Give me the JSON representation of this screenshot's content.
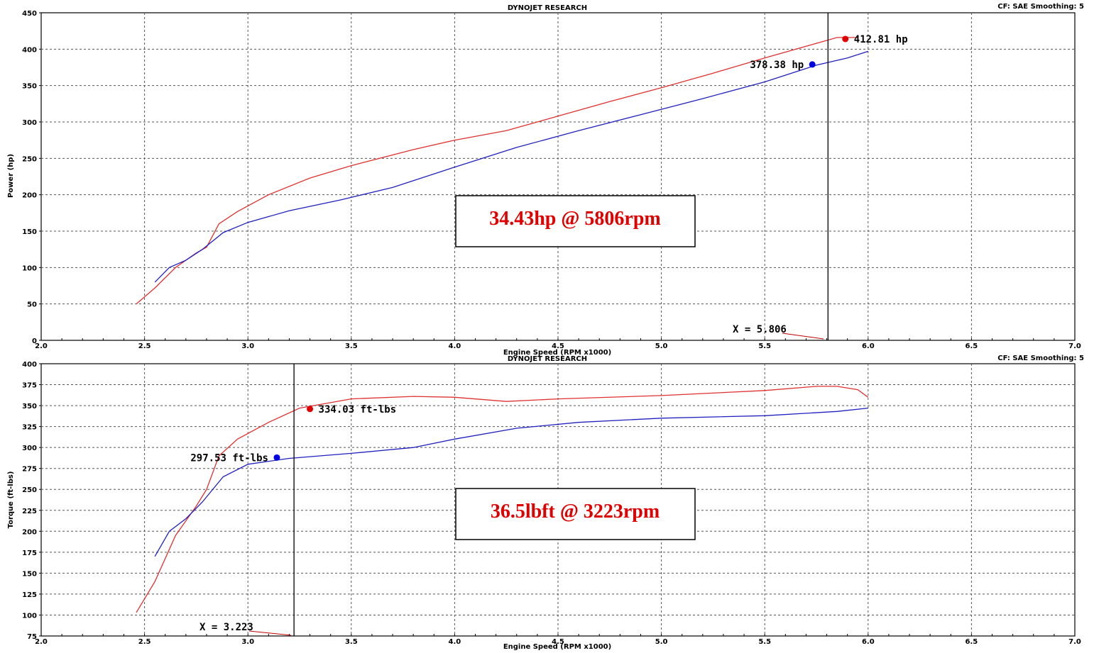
{
  "chart_data": [
    {
      "type": "line",
      "header": "DYNOJET RESEARCH",
      "settings": "CF: SAE  Smoothing: 5",
      "xlabel": "Engine Speed (RPM x1000)",
      "ylabel": "Power (hp)",
      "xlim": [
        2.0,
        7.0
      ],
      "ylim": [
        0,
        450
      ],
      "xticks": [
        "2.0",
        "2.5",
        "3.0",
        "3.5",
        "4.0",
        "4.5",
        "5.0",
        "5.5",
        "6.0",
        "6.5",
        "7.0"
      ],
      "yticks": [
        "0",
        "50",
        "100",
        "150",
        "200",
        "250",
        "300",
        "350",
        "400",
        "450"
      ],
      "grid": true,
      "colors": {
        "series_red": "#e03030",
        "series_blue": "#2020c0",
        "cursor": "#000000"
      },
      "series": [
        {
          "color": "#e03030",
          "x": [
            2.46,
            2.55,
            2.65,
            2.75,
            2.8,
            2.86,
            2.95,
            3.1,
            3.3,
            3.5,
            3.8,
            4.0,
            4.25,
            4.5,
            4.75,
            5.0,
            5.25,
            5.5,
            5.75,
            5.85,
            5.95
          ],
          "y": [
            50,
            72,
            100,
            120,
            128,
            160,
            177,
            200,
            223,
            240,
            262,
            275,
            288,
            308,
            328,
            347,
            367,
            388,
            408,
            416,
            416
          ]
        },
        {
          "color": "#2020c0",
          "x": [
            2.55,
            2.62,
            2.7,
            2.78,
            2.88,
            3.0,
            3.2,
            3.45,
            3.7,
            4.0,
            4.3,
            4.6,
            4.9,
            5.2,
            5.5,
            5.75,
            5.9,
            6.0
          ],
          "y": [
            80,
            100,
            110,
            125,
            148,
            162,
            178,
            193,
            210,
            238,
            265,
            288,
            310,
            332,
            355,
            378,
            388,
            397
          ]
        }
      ],
      "cursor_x": 5.806,
      "cursor_label": "X = 5.806",
      "markers": [
        {
          "label": "412.81 hp",
          "x": 5.89,
          "y": 414,
          "color": "#e00000"
        },
        {
          "label": "378.38 hp",
          "x": 5.73,
          "y": 379,
          "color": "#0000e0"
        }
      ],
      "annotation": "34.43hp @ 5806rpm"
    },
    {
      "type": "line",
      "header": "DYNOJET RESEARCH",
      "settings": "CF: SAE  Smoothing: 5",
      "xlabel": "Engine Speed (RPM x1000)",
      "ylabel": "Torque (ft-lbs)",
      "xlim": [
        2.0,
        7.0
      ],
      "ylim": [
        75,
        400
      ],
      "xticks": [
        "2.0",
        "2.5",
        "3.0",
        "3.5",
        "4.0",
        "4.5",
        "5.0",
        "5.5",
        "6.0",
        "6.5",
        "7.0"
      ],
      "yticks": [
        "75",
        "100",
        "125",
        "150",
        "175",
        "200",
        "225",
        "250",
        "275",
        "300",
        "325",
        "350",
        "375",
        "400"
      ],
      "grid": true,
      "colors": {
        "series_red": "#e03030",
        "series_blue": "#2020c0",
        "cursor": "#000000"
      },
      "series": [
        {
          "color": "#e03030",
          "x": [
            2.46,
            2.55,
            2.65,
            2.75,
            2.8,
            2.86,
            2.95,
            3.1,
            3.25,
            3.5,
            3.8,
            4.0,
            4.25,
            4.5,
            5.0,
            5.5,
            5.75,
            5.85,
            5.95,
            6.0
          ],
          "y": [
            103,
            140,
            195,
            230,
            250,
            290,
            310,
            330,
            347,
            358,
            361,
            360,
            355,
            358,
            362,
            368,
            373,
            373,
            369,
            360
          ]
        },
        {
          "color": "#2020c0",
          "x": [
            2.55,
            2.62,
            2.7,
            2.78,
            2.88,
            3.0,
            3.2,
            3.5,
            3.8,
            4.0,
            4.3,
            4.6,
            5.0,
            5.5,
            5.85,
            6.0
          ],
          "y": [
            170,
            200,
            215,
            235,
            265,
            280,
            287,
            293,
            300,
            310,
            323,
            330,
            335,
            338,
            343,
            347
          ]
        }
      ],
      "cursor_x": 3.223,
      "cursor_label": "X = 3.223",
      "markers": [
        {
          "label": "334.03 ft-lbs",
          "x": 3.3,
          "y": 346,
          "color": "#e00000"
        },
        {
          "label": "297.53 ft-lbs",
          "x": 3.14,
          "y": 288,
          "color": "#0000e0"
        }
      ],
      "annotation": "36.5lbft @ 3223rpm"
    }
  ]
}
